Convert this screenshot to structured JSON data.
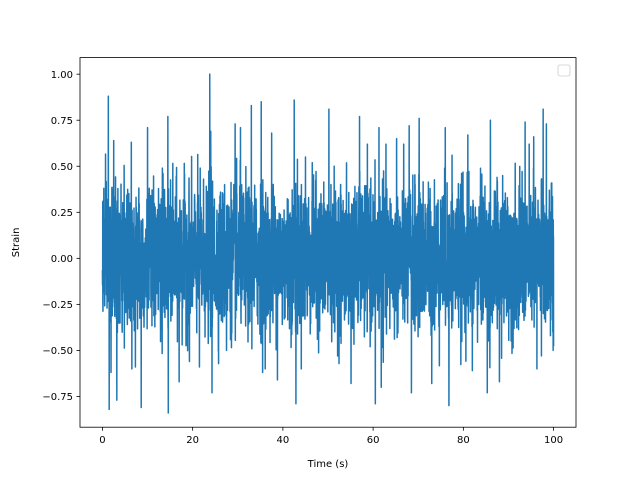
{
  "chart_data": {
    "type": "line",
    "title": "",
    "xlabel": "Time (s)",
    "ylabel": "Strain",
    "xlim": [
      -4.97,
      104.97
    ],
    "ylim": [
      -0.917,
      1.09
    ],
    "xticks": [
      0,
      20,
      40,
      60,
      80,
      100
    ],
    "xtick_labels": [
      "0",
      "20",
      "40",
      "60",
      "80",
      "100"
    ],
    "yticks": [
      -0.75,
      -0.5,
      -0.25,
      0.0,
      0.25,
      0.5,
      0.75,
      1.0
    ],
    "ytick_labels": [
      "−0.75",
      "−0.50",
      "−0.25",
      "0.00",
      "0.25",
      "0.50",
      "0.75",
      "1.00"
    ],
    "grid": false,
    "legend": {
      "placement": "top-right",
      "entries": []
    },
    "series": [
      {
        "color": "#1f77b4",
        "x_range": [
          0,
          100
        ],
        "noise_std": 0.19,
        "peaks": [
          {
            "x": 0.3,
            "y": 0.38
          },
          {
            "x": 1.0,
            "y": 0.32
          },
          {
            "x": 1.3,
            "y": 0.88
          },
          {
            "x": 1.5,
            "y": -0.82
          },
          {
            "x": 1.9,
            "y": -0.62
          },
          {
            "x": 2.5,
            "y": 0.64
          },
          {
            "x": 3.2,
            "y": -0.77
          },
          {
            "x": 6.4,
            "y": 0.63
          },
          {
            "x": 7.3,
            "y": -0.59
          },
          {
            "x": 8.6,
            "y": -0.81
          },
          {
            "x": 10.0,
            "y": 0.71
          },
          {
            "x": 13.3,
            "y": 0.49
          },
          {
            "x": 14.5,
            "y": 0.77
          },
          {
            "x": 14.6,
            "y": -0.84
          },
          {
            "x": 17.0,
            "y": -0.67
          },
          {
            "x": 19.3,
            "y": -0.56
          },
          {
            "x": 21.5,
            "y": -0.59
          },
          {
            "x": 23.8,
            "y": 1.0
          },
          {
            "x": 24.0,
            "y": 0.69
          },
          {
            "x": 24.3,
            "y": -0.73
          },
          {
            "x": 27.5,
            "y": -0.5
          },
          {
            "x": 29.4,
            "y": 0.73
          },
          {
            "x": 30.6,
            "y": 0.71
          },
          {
            "x": 33.0,
            "y": 0.83
          },
          {
            "x": 35.2,
            "y": 0.85
          },
          {
            "x": 35.5,
            "y": -0.62
          },
          {
            "x": 37.5,
            "y": 0.68
          },
          {
            "x": 38.8,
            "y": -0.66
          },
          {
            "x": 42.5,
            "y": 0.86
          },
          {
            "x": 42.9,
            "y": -0.79
          },
          {
            "x": 45.0,
            "y": 0.55
          },
          {
            "x": 50.2,
            "y": 0.81
          },
          {
            "x": 55.1,
            "y": -0.68
          },
          {
            "x": 57.0,
            "y": 0.77
          },
          {
            "x": 60.5,
            "y": -0.79
          },
          {
            "x": 61.3,
            "y": 0.71
          },
          {
            "x": 61.8,
            "y": -0.7
          },
          {
            "x": 65.2,
            "y": 0.65
          },
          {
            "x": 68.0,
            "y": 0.72
          },
          {
            "x": 68.5,
            "y": -0.73
          },
          {
            "x": 70.2,
            "y": 0.76
          },
          {
            "x": 73.0,
            "y": -0.68
          },
          {
            "x": 76.0,
            "y": 0.71
          },
          {
            "x": 76.8,
            "y": -0.8
          },
          {
            "x": 77.5,
            "y": 0.56
          },
          {
            "x": 81.0,
            "y": 0.67
          },
          {
            "x": 82.0,
            "y": -0.61
          },
          {
            "x": 85.3,
            "y": -0.73
          },
          {
            "x": 86.0,
            "y": 0.75
          },
          {
            "x": 88.0,
            "y": -0.67
          },
          {
            "x": 93.7,
            "y": 0.74
          },
          {
            "x": 95.6,
            "y": 0.66
          },
          {
            "x": 96.3,
            "y": -0.6
          },
          {
            "x": 97.3,
            "y": -0.53
          },
          {
            "x": 97.7,
            "y": 0.81
          },
          {
            "x": 98.4,
            "y": 0.73
          },
          {
            "x": 99.3,
            "y": -0.42
          },
          {
            "x": 99.6,
            "y": 0.41
          },
          {
            "x": 99.9,
            "y": -0.5
          }
        ]
      }
    ]
  }
}
